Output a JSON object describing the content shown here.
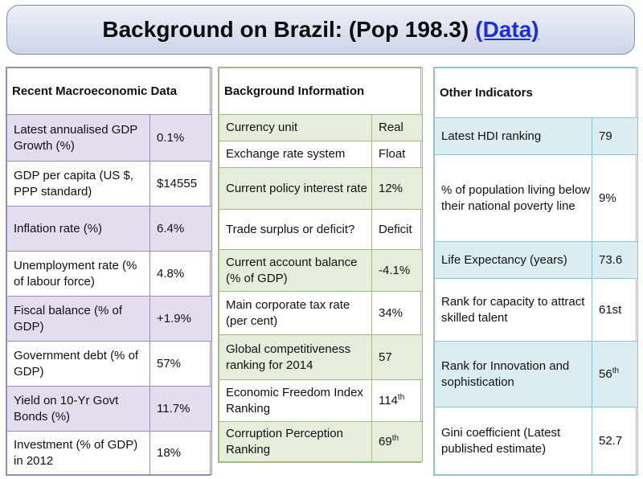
{
  "title": {
    "text": "Background on Brazil: (Pop 198.3)",
    "link_text": "(Data)"
  },
  "left_panel": {
    "header": "Recent Macroeconomic Data",
    "rows": [
      {
        "label": "Latest annualised GDP Growth (%)",
        "value": "0.1%"
      },
      {
        "label": "GDP per capita (US $, PPP standard)",
        "value": "$14555"
      },
      {
        "label": "Inflation rate (%)",
        "value": "6.4%"
      },
      {
        "label": "Unemployment rate (% of labour force)",
        "value": "4.8%"
      },
      {
        "label": "Fiscal balance (% of GDP)",
        "value": "+1.9%"
      },
      {
        "label": "Government debt (% of GDP)",
        "value": "57%"
      },
      {
        "label": "Yield on 10-Yr Govt Bonds (%)",
        "value": "11.7%"
      },
      {
        "label": "Investment (% of GDP) in 2012",
        "value": "18%"
      }
    ]
  },
  "middle_panel": {
    "header": "Background Information",
    "rows": [
      {
        "label": "Currency unit",
        "value": "Real"
      },
      {
        "label": "Exchange rate system",
        "value": "Float"
      },
      {
        "label": "Current policy interest rate",
        "value": "12%"
      },
      {
        "label": "Trade surplus or deficit?",
        "value": "Deficit"
      },
      {
        "label": "Current account balance (% of GDP)",
        "value": "-4.1%"
      },
      {
        "label": "Main corporate tax rate (per cent)",
        "value": "34%"
      },
      {
        "label": "Global competitiveness ranking for 2014",
        "value": "57"
      },
      {
        "label": "Economic Freedom Index Ranking",
        "value": "114",
        "suffix": "th"
      },
      {
        "label": "Corruption Perception Ranking",
        "value": "69",
        "suffix": "th"
      }
    ]
  },
  "right_panel": {
    "header": "Other Indicators",
    "rows": [
      {
        "label": "Latest HDI ranking",
        "value": "79"
      },
      {
        "label": "% of population living below their national poverty line",
        "value": "9%"
      },
      {
        "label": "Life Expectancy (years)",
        "value": "73.6"
      },
      {
        "label": "Rank for capacity to attract skilled talent",
        "value": "61st"
      },
      {
        "label": "Rank for Innovation and sophistication",
        "value": "56",
        "suffix": "th"
      },
      {
        "label": "Gini coefficient (Latest published estimate)",
        "value": "52.7"
      }
    ]
  }
}
